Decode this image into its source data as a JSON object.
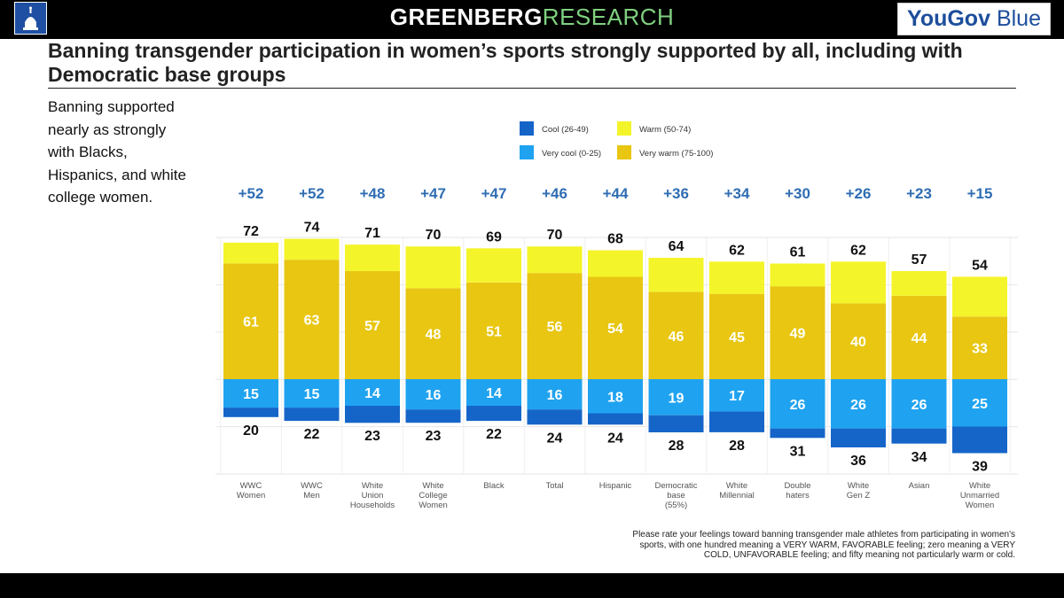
{
  "header": {
    "brand_bold": "GREENBERG",
    "brand_light": "RESEARCH",
    "partner_1": "YouGov",
    "partner_2": "Blue",
    "logo_icon": "capitol-dome-icon"
  },
  "slide": {
    "title": "Banning transgender participation in women’s sports strongly supported by all, including with Democratic base groups",
    "side_text": "Banning supported nearly as strongly with Blacks, Hispanics, and white college women.",
    "footnote": "Please rate your feelings toward banning transgender male athletes from participating in women's sports, with one hundred meaning a VERY WARM, FAVORABLE feeling; zero meaning a VERY COLD, UNFAVORABLE feeling; and fifty meaning not particularly warm or cold."
  },
  "chart_data": {
    "type": "bar",
    "stacked": true,
    "diverging": true,
    "title": "",
    "legend": [
      {
        "name": "Cool (26-49)",
        "color": "#1565c8"
      },
      {
        "name": "Warm (50-74)",
        "color": "#f4f42a"
      },
      {
        "name": "Very cool (0-25)",
        "color": "#1fa3f0"
      },
      {
        "name": "Very warm (75-100)",
        "color": "#e8c612"
      }
    ],
    "categories": [
      [
        "WWC",
        "Women"
      ],
      [
        "WWC",
        "Men"
      ],
      [
        "White",
        "Union",
        "Households"
      ],
      [
        "White",
        "College",
        "Women"
      ],
      [
        "Black"
      ],
      [
        "Total"
      ],
      [
        "Hispanic"
      ],
      [
        "Democratic",
        "base",
        "(55%)"
      ],
      [
        "White",
        "Millennial"
      ],
      [
        "Double",
        "haters"
      ],
      [
        "White",
        "Gen Z"
      ],
      [
        "Asian"
      ],
      [
        "White",
        "Unmarried",
        "Women"
      ]
    ],
    "series": [
      {
        "name": "Very warm (75-100)",
        "values": [
          61,
          63,
          57,
          48,
          51,
          56,
          54,
          46,
          45,
          49,
          40,
          44,
          33
        ]
      },
      {
        "name": "Warm (50-74)",
        "values": [
          11,
          11,
          14,
          22,
          18,
          14,
          14,
          18,
          17,
          12,
          22,
          13,
          21
        ]
      },
      {
        "name": "Very cool (0-25)",
        "values": [
          15,
          15,
          14,
          16,
          14,
          16,
          18,
          19,
          17,
          26,
          26,
          26,
          25
        ]
      },
      {
        "name": "Cool (26-49)",
        "values": [
          5,
          7,
          9,
          7,
          8,
          8,
          6,
          9,
          11,
          5,
          10,
          8,
          14
        ]
      }
    ],
    "warm_totals": [
      72,
      74,
      71,
      70,
      69,
      70,
      68,
      64,
      62,
      61,
      62,
      57,
      54
    ],
    "cool_totals": [
      20,
      22,
      23,
      23,
      22,
      24,
      24,
      28,
      28,
      31,
      36,
      34,
      39
    ],
    "net": [
      "+52",
      "+52",
      "+48",
      "+47",
      "+47",
      "+46",
      "+44",
      "+36",
      "+34",
      "+30",
      "+26",
      "+23",
      "+15"
    ],
    "xlabel": "",
    "ylabel": "",
    "grid": true
  }
}
